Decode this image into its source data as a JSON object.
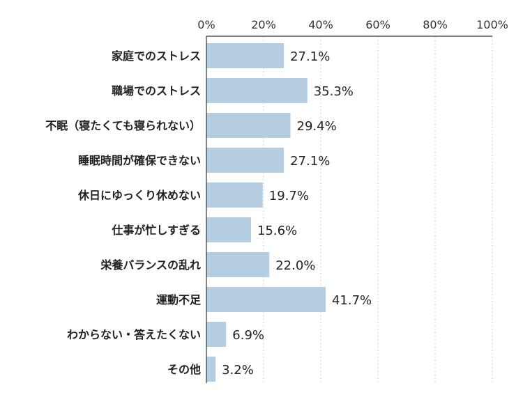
{
  "chart_data": {
    "type": "bar",
    "orientation": "horizontal",
    "title": "",
    "xlabel": "",
    "ylabel": "",
    "xlim": [
      0,
      100
    ],
    "x_ticks": [
      "0%",
      "20%",
      "40%",
      "60%",
      "80%",
      "100%"
    ],
    "grid": true,
    "categories": [
      "家庭でのストレス",
      "職場でのストレス",
      "不眠（寝たくても寝られない）",
      "睡眠時間が確保できない",
      "休日にゆっくり休めない",
      "仕事が忙しすぎる",
      "栄養バランスの乱れ",
      "運動不足",
      "わからない・答えたくない",
      "その他"
    ],
    "values": [
      27.1,
      35.3,
      29.4,
      27.1,
      19.7,
      15.6,
      22.0,
      41.7,
      6.9,
      3.2
    ],
    "value_labels": [
      "27.1%",
      "35.3%",
      "29.4%",
      "27.1%",
      "19.7%",
      "15.6%",
      "22.0%",
      "41.7%",
      "6.9%",
      "3.2%"
    ],
    "bar_color": "#b4cde1"
  }
}
